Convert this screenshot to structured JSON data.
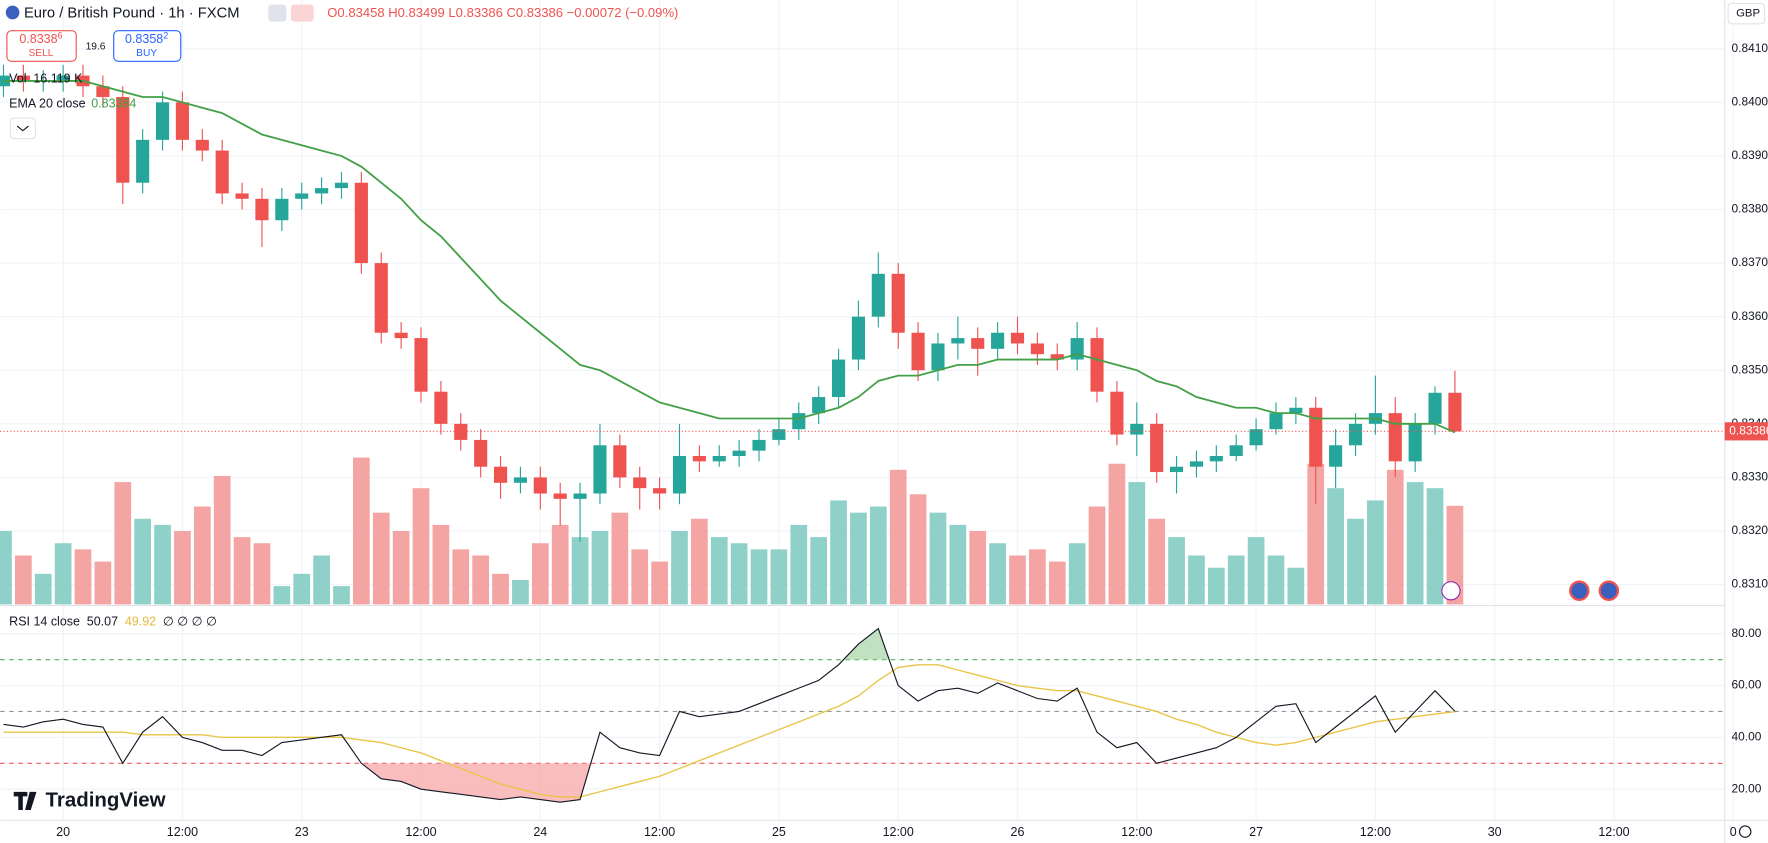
{
  "chart_data": [
    {
      "type": "candlestick",
      "title": "Euro / British Pound · 1h · FXCM",
      "ohlc_legend": "O0.83458 H0.83499 L0.83386 C0.83386 −0.00072 (−0.09%)",
      "currency": "GBP",
      "trade": {
        "sell_price": "0.8338",
        "sell_pip": "6",
        "sell": "SELL",
        "spread": "19.6",
        "buy_price": "0.8358",
        "buy_pip": "2",
        "buy": "BUY"
      },
      "up_color": "#26a69a",
      "down_color": "#ef5350",
      "xlim": [
        -0.17,
        86.57
      ],
      "xticks": [
        {
          "value": 3,
          "label": "20"
        },
        {
          "value": 9,
          "label": "12:00"
        },
        {
          "value": 15,
          "label": "23"
        },
        {
          "value": 21,
          "label": "12:00"
        },
        {
          "value": 27,
          "label": "24"
        },
        {
          "value": 33,
          "label": "12:00"
        },
        {
          "value": 39,
          "label": "25"
        },
        {
          "value": 45,
          "label": "12:00"
        },
        {
          "value": 51,
          "label": "26"
        },
        {
          "value": 57,
          "label": "12:00"
        },
        {
          "value": 63,
          "label": "27"
        },
        {
          "value": 69,
          "label": "12:00"
        },
        {
          "value": 75,
          "label": "30"
        },
        {
          "value": 81,
          "label": "12:00"
        },
        {
          "value": 87,
          "label": "0"
        }
      ],
      "ylim": [
        0.83063,
        0.84191
      ],
      "yticks": [
        {
          "value": 0.831,
          "label": "0.83100"
        },
        {
          "value": 0.832,
          "label": "0.83200"
        },
        {
          "value": 0.833,
          "label": "0.83300"
        },
        {
          "value": 0.834,
          "label": "0.83400"
        },
        {
          "value": 0.835,
          "label": "0.83500"
        },
        {
          "value": 0.836,
          "label": "0.83600"
        },
        {
          "value": 0.837,
          "label": "0.83700"
        },
        {
          "value": 0.838,
          "label": "0.83800"
        },
        {
          "value": 0.839,
          "label": "0.83900"
        },
        {
          "value": 0.84,
          "label": "0.84000"
        },
        {
          "value": 0.841,
          "label": "0.84100"
        }
      ],
      "grid": true,
      "open": [
        0.8403,
        0.8405,
        0.8404,
        0.8404,
        0.8405,
        0.8403,
        0.8401,
        0.8385,
        0.8393,
        0.84,
        0.8393,
        0.8391,
        0.8383,
        0.8382,
        0.8378,
        0.8382,
        0.8383,
        0.8384,
        0.8385,
        0.837,
        0.8357,
        0.8356,
        0.8346,
        0.834,
        0.8337,
        0.8332,
        0.8329,
        0.833,
        0.8327,
        0.8326,
        0.8327,
        0.8336,
        0.833,
        0.8328,
        0.8327,
        0.8334,
        0.8333,
        0.8334,
        0.8335,
        0.8337,
        0.8339,
        0.8342,
        0.8345,
        0.8352,
        0.836,
        0.8368,
        0.8357,
        0.835,
        0.8355,
        0.8356,
        0.8354,
        0.8357,
        0.8355,
        0.8353,
        0.8352,
        0.8356,
        0.8346,
        0.8338,
        0.834,
        0.8331,
        0.8332,
        0.8333,
        0.8334,
        0.8336,
        0.8339,
        0.8342,
        0.8343,
        0.8332,
        0.8336,
        0.834,
        0.8342,
        0.8333,
        0.834,
        0.83458
      ],
      "high": [
        0.8407,
        0.8407,
        0.8406,
        0.8407,
        0.8407,
        0.8405,
        0.8403,
        0.8395,
        0.8402,
        0.8402,
        0.8395,
        0.8393,
        0.8385,
        0.8384,
        0.8384,
        0.8385,
        0.8386,
        0.8387,
        0.8387,
        0.8372,
        0.8359,
        0.8358,
        0.8348,
        0.8342,
        0.8339,
        0.8334,
        0.8332,
        0.8332,
        0.8329,
        0.8329,
        0.834,
        0.8338,
        0.8332,
        0.833,
        0.834,
        0.8336,
        0.8336,
        0.8337,
        0.8339,
        0.8341,
        0.8344,
        0.8347,
        0.8354,
        0.8363,
        0.8372,
        0.837,
        0.8359,
        0.8357,
        0.836,
        0.8358,
        0.8359,
        0.836,
        0.8357,
        0.8355,
        0.8359,
        0.8358,
        0.8348,
        0.8344,
        0.8342,
        0.8334,
        0.8335,
        0.8336,
        0.8338,
        0.8341,
        0.8344,
        0.8345,
        0.8345,
        0.8339,
        0.8342,
        0.8349,
        0.8345,
        0.8342,
        0.8347,
        0.83499
      ],
      "low": [
        0.8401,
        0.8402,
        0.8402,
        0.8402,
        0.8401,
        0.8399,
        0.8381,
        0.8383,
        0.8391,
        0.8391,
        0.8389,
        0.8381,
        0.838,
        0.8373,
        0.8376,
        0.838,
        0.8381,
        0.8382,
        0.8368,
        0.8355,
        0.8354,
        0.8344,
        0.8338,
        0.8335,
        0.833,
        0.8326,
        0.8327,
        0.8324,
        0.8321,
        0.8318,
        0.8325,
        0.8328,
        0.8324,
        0.8324,
        0.8325,
        0.8331,
        0.8332,
        0.8332,
        0.8333,
        0.8336,
        0.8337,
        0.834,
        0.8343,
        0.835,
        0.8358,
        0.8354,
        0.8348,
        0.8348,
        0.8352,
        0.8349,
        0.8352,
        0.8353,
        0.8351,
        0.835,
        0.835,
        0.8344,
        0.8336,
        0.8334,
        0.8329,
        0.8327,
        0.833,
        0.8331,
        0.8333,
        0.8335,
        0.8338,
        0.834,
        0.8325,
        0.8328,
        0.8334,
        0.8338,
        0.833,
        0.8331,
        0.8338,
        0.83386
      ],
      "close": [
        0.8405,
        0.8404,
        0.8404,
        0.8405,
        0.8403,
        0.8401,
        0.8385,
        0.8393,
        0.84,
        0.8393,
        0.8391,
        0.8383,
        0.8382,
        0.8378,
        0.8382,
        0.8383,
        0.8384,
        0.8385,
        0.837,
        0.8357,
        0.8356,
        0.8346,
        0.834,
        0.8337,
        0.8332,
        0.8329,
        0.833,
        0.8327,
        0.8326,
        0.8327,
        0.8336,
        0.833,
        0.8328,
        0.8327,
        0.8334,
        0.8333,
        0.8334,
        0.8335,
        0.8337,
        0.8339,
        0.8342,
        0.8345,
        0.8352,
        0.836,
        0.8368,
        0.8357,
        0.835,
        0.8355,
        0.8356,
        0.8354,
        0.8357,
        0.8355,
        0.8353,
        0.8352,
        0.8356,
        0.8346,
        0.8338,
        0.834,
        0.8331,
        0.8332,
        0.8333,
        0.8334,
        0.8336,
        0.8339,
        0.8342,
        0.8343,
        0.8332,
        0.8336,
        0.834,
        0.8342,
        0.8333,
        0.834,
        0.83458,
        0.83386
      ],
      "volume": {
        "name": "Vol",
        "last_label": "16.119 K",
        "ylim": [
          0,
          26
        ],
        "up_color": "#8fd1c9",
        "down_color": "#f4a5a3",
        "values": [
          12,
          8,
          5,
          10,
          9,
          7,
          20,
          14,
          13,
          12,
          16,
          21,
          11,
          10,
          3,
          5,
          8,
          3,
          24,
          15,
          12,
          19,
          13,
          9,
          8,
          5,
          4,
          10,
          13,
          11,
          12,
          15,
          9,
          7,
          12,
          14,
          11,
          10,
          9,
          9,
          13,
          11,
          17,
          15,
          16,
          22,
          18,
          15,
          13,
          12,
          10,
          8,
          9,
          7,
          10,
          16,
          23,
          20,
          14,
          11,
          8,
          6,
          8,
          11,
          8,
          6,
          23,
          19,
          14,
          17,
          22,
          20,
          19,
          16.119
        ]
      },
      "ema": {
        "name": "EMA 20 close",
        "color": "#43a047",
        "values": [
          0.8404,
          0.8404,
          0.8404,
          0.8404,
          0.8404,
          0.8403,
          0.8402,
          0.8401,
          0.8401,
          0.84,
          0.8399,
          0.8398,
          0.8396,
          0.8394,
          0.8393,
          0.8392,
          0.8391,
          0.839,
          0.8388,
          0.8385,
          0.8382,
          0.8378,
          0.8375,
          0.8371,
          0.8367,
          0.8363,
          0.836,
          0.8357,
          0.8354,
          0.8351,
          0.835,
          0.8348,
          0.8346,
          0.8344,
          0.8343,
          0.8342,
          0.8341,
          0.8341,
          0.8341,
          0.8341,
          0.8341,
          0.8342,
          0.8343,
          0.8345,
          0.8348,
          0.8349,
          0.8349,
          0.835,
          0.8351,
          0.8351,
          0.8352,
          0.8352,
          0.8352,
          0.8352,
          0.8353,
          0.8352,
          0.8351,
          0.835,
          0.8348,
          0.8347,
          0.8345,
          0.8344,
          0.8343,
          0.8343,
          0.8342,
          0.8342,
          0.8341,
          0.8341,
          0.8341,
          0.8341,
          0.834,
          0.834,
          0.834,
          0.83384
        ]
      }
    },
    {
      "type": "line",
      "title": "RSI 14 close",
      "extra": "∅ ∅ ∅ ∅",
      "ylim": [
        8,
        90
      ],
      "yticks": [
        {
          "value": 20,
          "label": "20.00"
        },
        {
          "value": 40,
          "label": "40.00"
        },
        {
          "value": 60,
          "label": "60.00"
        },
        {
          "value": 80,
          "label": "80.00"
        }
      ],
      "levels": [
        {
          "value": 70,
          "color": "#4caf50"
        },
        {
          "value": 50,
          "color": "#9598a1"
        },
        {
          "value": 30,
          "color": "#ef5350"
        }
      ],
      "series": [
        {
          "color": "#131722",
          "values": [
            45,
            44,
            46,
            47,
            45,
            44,
            30,
            42,
            48,
            40,
            38,
            35,
            35,
            33,
            38,
            39,
            40,
            41,
            30,
            24,
            23,
            20,
            19,
            18,
            17,
            16,
            17,
            16,
            15,
            16,
            42,
            36,
            34,
            33,
            50,
            48,
            49,
            50,
            53,
            56,
            59,
            62,
            68,
            76,
            82,
            60,
            54,
            58,
            59,
            57,
            61,
            58,
            55,
            54,
            59,
            42,
            36,
            38,
            30,
            32,
            34,
            36,
            40,
            46,
            52,
            53,
            38,
            44,
            50,
            56,
            42,
            50,
            58,
            50.07
          ]
        },
        {
          "color": "#e8c547",
          "values": [
            42,
            42,
            42,
            42,
            42,
            42,
            42,
            41,
            41,
            41,
            41,
            40,
            40,
            40,
            40,
            40,
            40,
            40,
            39,
            38,
            36,
            34,
            31,
            28,
            25,
            22,
            20,
            18,
            17,
            17,
            19,
            21,
            23,
            25,
            28,
            31,
            34,
            37,
            40,
            43,
            46,
            49,
            52,
            56,
            62,
            67,
            68,
            68,
            66,
            64,
            62,
            60,
            59,
            58,
            58,
            56,
            54,
            52,
            50,
            47,
            45,
            42,
            40,
            38,
            37,
            38,
            40,
            42,
            44,
            46,
            47,
            48,
            49,
            49.92
          ]
        }
      ]
    }
  ],
  "watermark": "TradingView"
}
